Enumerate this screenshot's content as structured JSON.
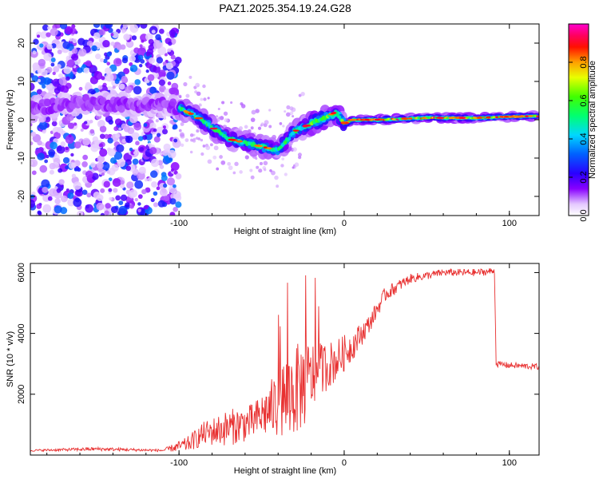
{
  "chart_data": [
    {
      "type": "heatmap",
      "title": "PAZ1.2025.354.19.24.G28",
      "xlabel": "Height of straight line (km)",
      "ylabel": "Frequency (Hz)",
      "xlim": [
        -190,
        118
      ],
      "ylim": [
        -25,
        25
      ],
      "x_ticks": [
        -100,
        0,
        100
      ],
      "x_tick_labels": [
        "-100",
        "0",
        "100"
      ],
      "y_ticks": [
        -20,
        -10,
        0,
        10,
        20
      ],
      "y_tick_labels": [
        "-20",
        "-10",
        "0",
        "10",
        "20"
      ],
      "colorbar": {
        "label": "Normalized spectral amplitude",
        "range": [
          0.0,
          1.0
        ],
        "ticks": [
          0.0,
          0.2,
          0.4,
          0.6,
          0.8
        ],
        "tick_labels": [
          "0.0",
          "0.2",
          "0.4",
          "0.6",
          "0.8"
        ],
        "colormap": "rainbow (white-violet-blue-cyan-green-yellow-red-magenta)"
      },
      "ridge": {
        "description": "Dominant frequency track",
        "x": [
          -190,
          -160,
          -130,
          -110,
          -100,
          -90,
          -80,
          -70,
          -60,
          -50,
          -40,
          -30,
          -20,
          -10,
          -5,
          0,
          5,
          20,
          50,
          80,
          100,
          118
        ],
        "y": [
          3,
          4.5,
          4,
          4,
          3,
          1,
          -2,
          -5,
          -6,
          -7,
          -8,
          -3,
          -1,
          1,
          2,
          -1,
          0,
          0,
          0.5,
          0.5,
          0.8,
          1
        ]
      }
    },
    {
      "type": "line",
      "xlabel": "Height of straight line (km)",
      "ylabel": "SNR (10 * v/v)",
      "xlim": [
        -190,
        118
      ],
      "ylim": [
        0,
        6300
      ],
      "x_ticks": [
        -100,
        0,
        100
      ],
      "x_tick_labels": [
        "-100",
        "0",
        "100"
      ],
      "y_ticks": [
        2000,
        4000,
        6000
      ],
      "y_tick_labels": [
        "2000",
        "4000",
        "6000"
      ],
      "series": [
        {
          "name": "SNR",
          "color": "#e83030",
          "envelope_x": [
            -190,
            -150,
            -110,
            -95,
            -85,
            -70,
            -55,
            -45,
            -35,
            -25,
            -15,
            -5,
            5,
            15,
            25,
            40,
            60,
            80,
            91,
            92,
            100,
            118
          ],
          "envelope_y": [
            150,
            200,
            150,
            350,
            700,
            900,
            1100,
            1500,
            1900,
            2300,
            2800,
            3100,
            3600,
            4300,
            5300,
            5800,
            6000,
            6000,
            6050,
            3000,
            2950,
            2900
          ],
          "noise_amplitude": [
            30,
            60,
            40,
            250,
            400,
            600,
            600,
            900,
            1500,
            1500,
            900,
            700,
            500,
            300,
            250,
            150,
            120,
            120,
            120,
            100,
            100,
            100
          ]
        }
      ]
    }
  ]
}
